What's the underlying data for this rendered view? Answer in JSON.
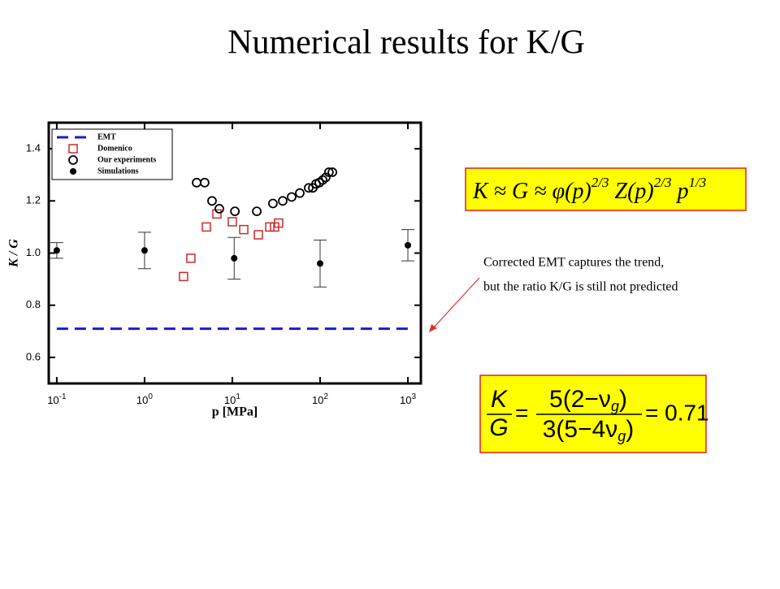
{
  "title": "Numerical results for K/G",
  "annotation": [
    "Corrected EMT captures the trend,",
    "but the ratio K/G is still not predicted"
  ],
  "formula_1": [
    "K ≈ G ≈ φ(p)",
    "2/3",
    " Z(p)",
    "2/3",
    " p",
    "1/3"
  ],
  "formula_2": {
    "num": "K",
    "den": "G",
    "rhs_num": [
      "5(2−ν",
      "g",
      ")"
    ],
    "rhs_den": [
      "3(5−4ν",
      "g",
      ")"
    ],
    "result": "= 0.71"
  },
  "chart_data": {
    "type": "scatter",
    "xlabel": "p [MPa]",
    "ylabel": "K / G",
    "xscale": "log",
    "xlim": [
      0.081,
      1406
    ],
    "ylim": [
      0.5,
      1.5
    ],
    "xticks": [
      {
        "value": 0.1,
        "label": "10",
        "exponent": "-1"
      },
      {
        "value": 1,
        "label": "10",
        "exponent": "0"
      },
      {
        "value": 10,
        "label": "10",
        "exponent": "1"
      },
      {
        "value": 100,
        "label": "10",
        "exponent": "2"
      },
      {
        "value": 1000,
        "label": "10",
        "exponent": "3"
      }
    ],
    "yticks": [
      0.6,
      0.8,
      {
        "value": 1.0,
        "label": "1.0"
      },
      1.2,
      1.4
    ],
    "legend": "upper left",
    "series": [
      {
        "name": "EMT",
        "color": "#1c1ccc",
        "marker": "dashed-line",
        "x": [
          0.1,
          1000
        ],
        "values": [
          0.71,
          0.71
        ]
      },
      {
        "name": "Domenico",
        "color": "#cc2a2a",
        "marker": "open-square",
        "x": [
          2.78,
          3.37,
          5.06,
          6.67,
          10,
          13.5,
          19.8,
          26.7,
          30.3,
          33.7
        ],
        "values": [
          0.91,
          0.98,
          1.1,
          1.15,
          1.12,
          1.09,
          1.07,
          1.1,
          1.1,
          1.115
        ]
      },
      {
        "name": "Our experiments",
        "color": "#000000",
        "marker": "open-circle",
        "x": [
          3.92,
          4.84,
          5.87,
          7.11,
          10.7,
          19.0,
          29.0,
          37.5,
          47.4,
          58.7,
          74.1,
          82.6,
          89.9,
          97.9,
          107,
          116,
          126,
          138
        ],
        "values": [
          1.27,
          1.27,
          1.2,
          1.17,
          1.16,
          1.16,
          1.19,
          1.2,
          1.215,
          1.23,
          1.25,
          1.25,
          1.265,
          1.27,
          1.28,
          1.29,
          1.31,
          1.31
        ]
      },
      {
        "name": "Simulations",
        "color": "#000000",
        "marker": "filled-circle",
        "x": [
          0.1,
          1,
          10.5,
          100,
          1000
        ],
        "values": [
          1.01,
          1.01,
          0.98,
          0.96,
          1.03
        ],
        "errors": [
          0.03,
          0.07,
          0.08,
          0.09,
          0.06
        ]
      }
    ]
  }
}
